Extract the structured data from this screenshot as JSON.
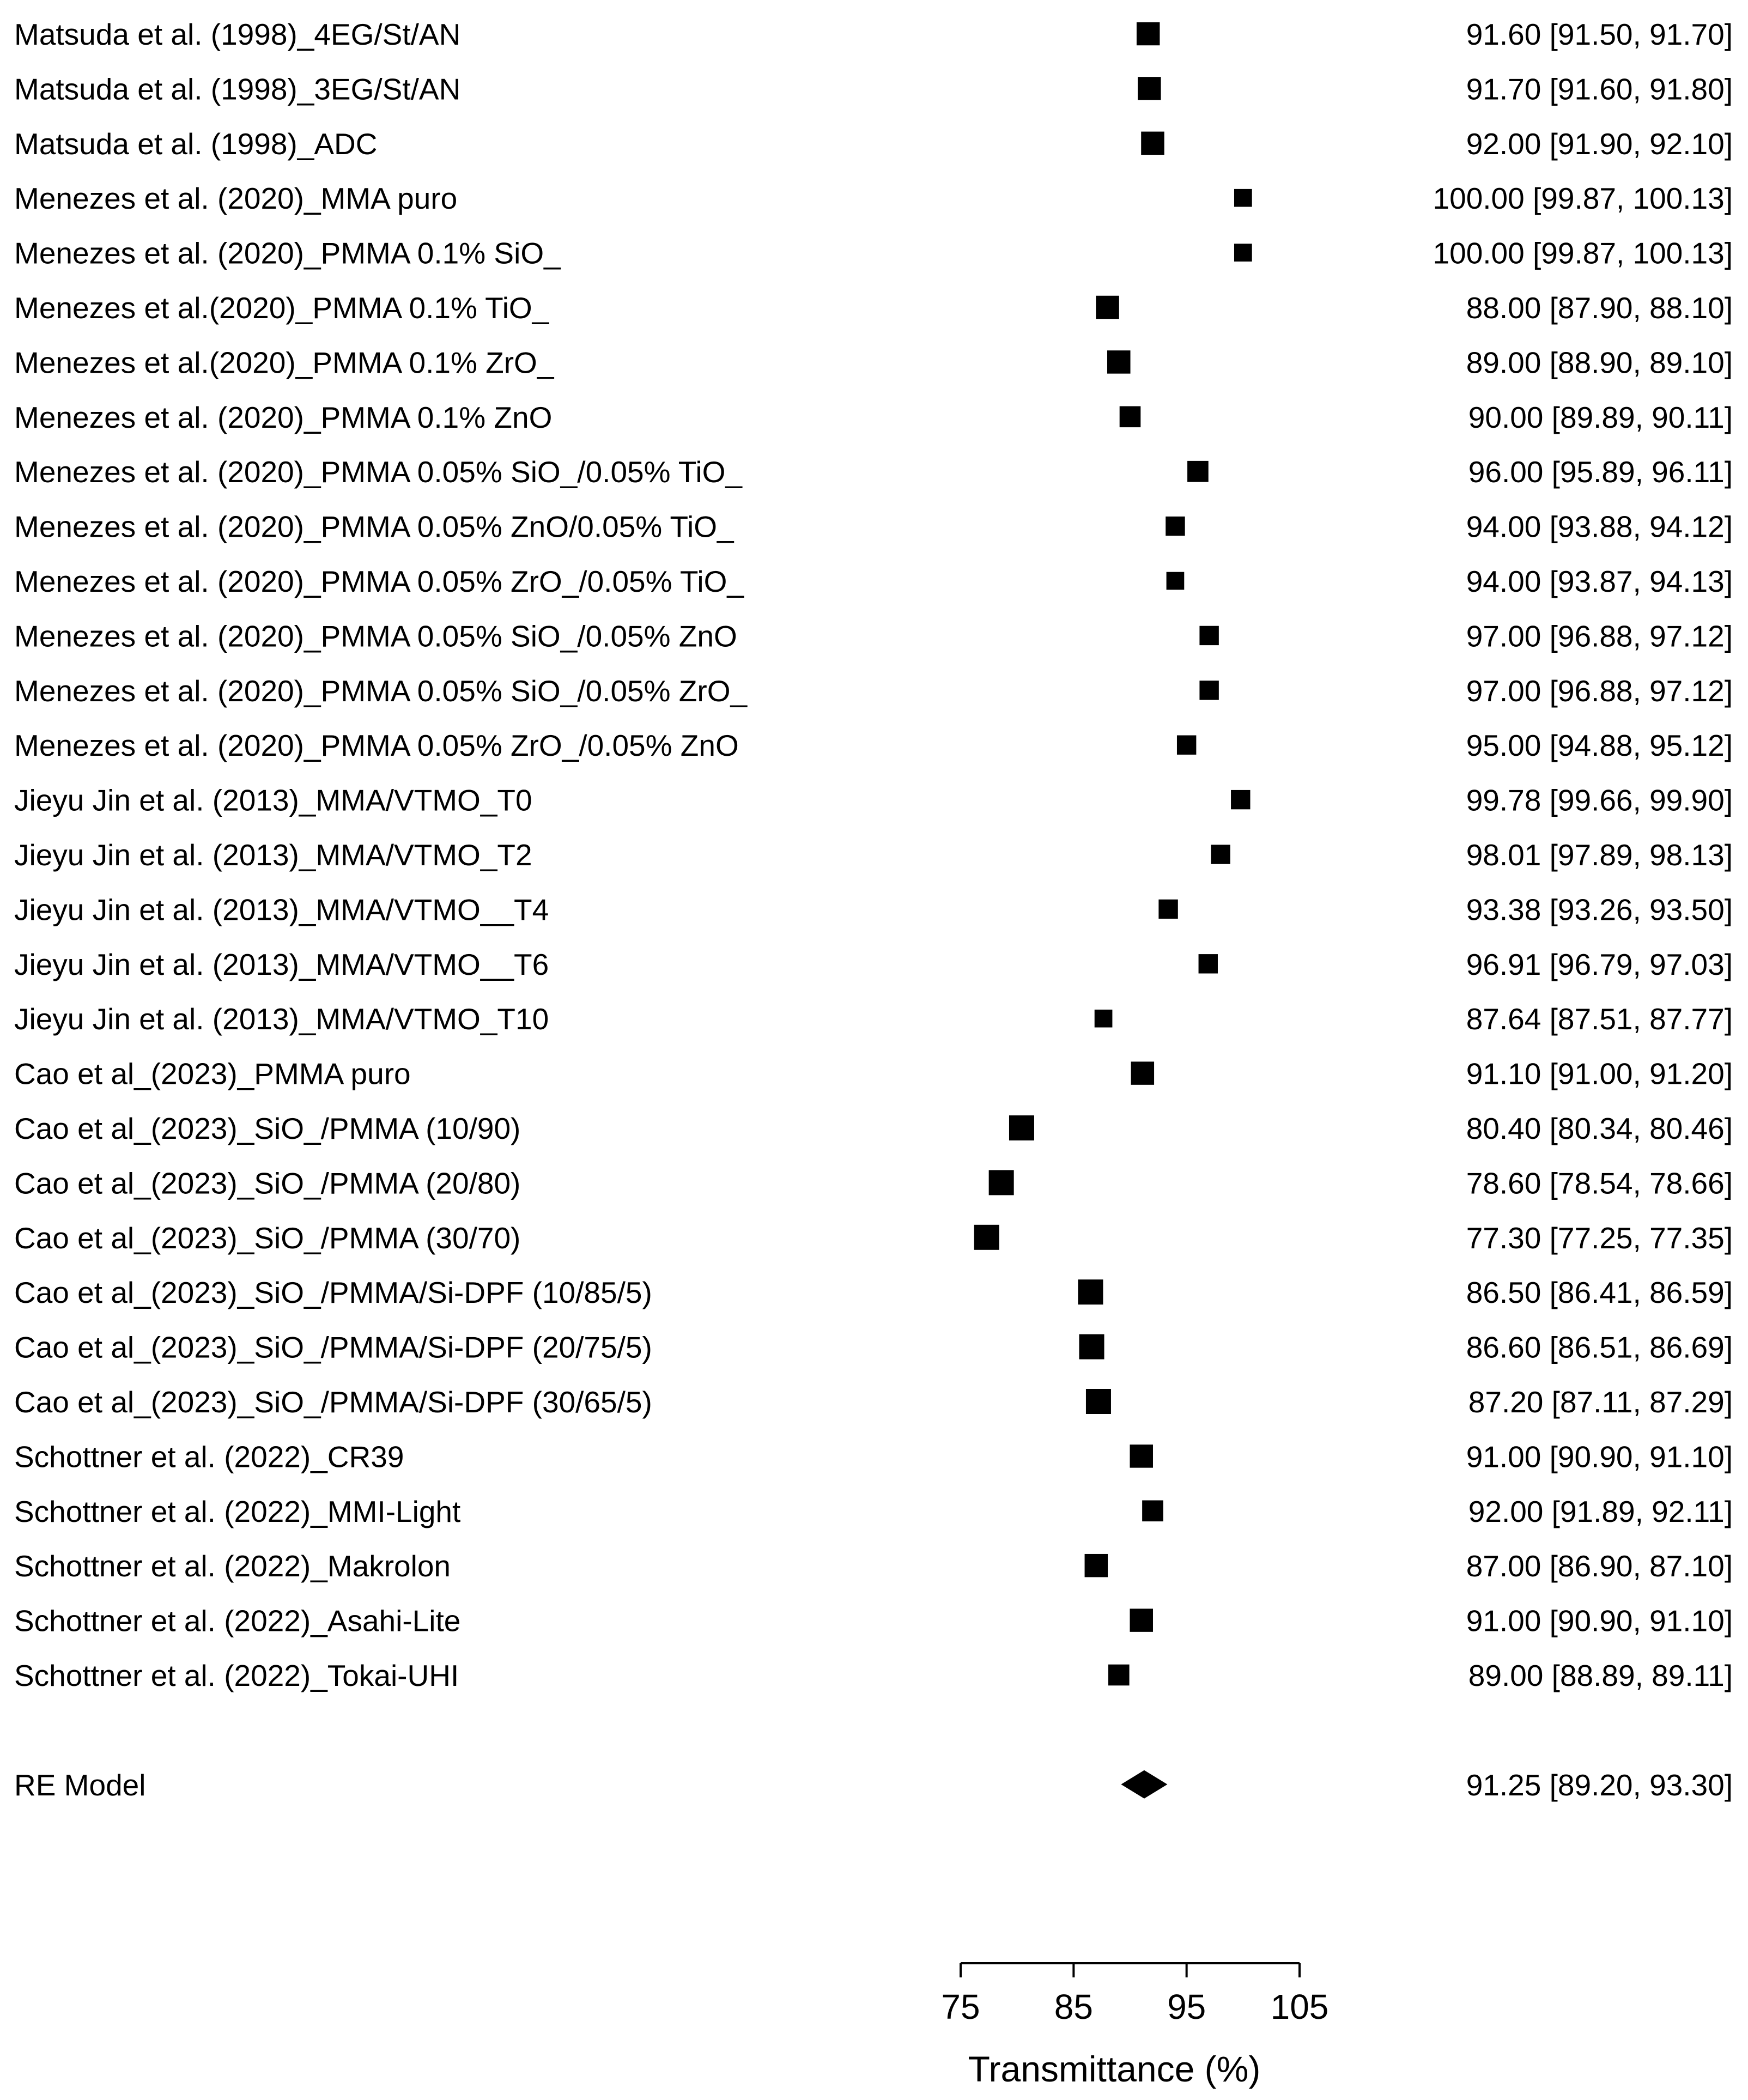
{
  "chart_data": {
    "type": "forest",
    "xlabel": "Transmittance (%)",
    "xlim": [
      75,
      105
    ],
    "xticks": [
      75,
      85,
      95,
      105
    ],
    "grid": false,
    "marker_color": "#000000",
    "studies": [
      {
        "label": "Matsuda et al. (1998)_4EG/St/AN",
        "estimate": 91.6,
        "lower": 91.5,
        "upper": 91.7,
        "ci_text": "91.60 [91.50, 91.70]"
      },
      {
        "label": "Matsuda et al. (1998)_3EG/St/AN",
        "estimate": 91.7,
        "lower": 91.6,
        "upper": 91.8,
        "ci_text": "91.70 [91.60, 91.80]"
      },
      {
        "label": "Matsuda et al. (1998)_ADC",
        "estimate": 92.0,
        "lower": 91.9,
        "upper": 92.1,
        "ci_text": "92.00 [91.90, 92.10]"
      },
      {
        "label": "Menezes et al. (2020)_MMA puro",
        "estimate": 100.0,
        "lower": 99.87,
        "upper": 100.13,
        "ci_text": "100.00 [99.87, 100.13]"
      },
      {
        "label": "Menezes et al. (2020)_PMMA 0.1% SiO_",
        "estimate": 100.0,
        "lower": 99.87,
        "upper": 100.13,
        "ci_text": "100.00 [99.87, 100.13]"
      },
      {
        "label": "Menezes et al.(2020)_PMMA 0.1% TiO_",
        "estimate": 88.0,
        "lower": 87.9,
        "upper": 88.1,
        "ci_text": "88.00 [87.90, 88.10]"
      },
      {
        "label": "Menezes et al.(2020)_PMMA 0.1% ZrO_",
        "estimate": 89.0,
        "lower": 88.9,
        "upper": 89.1,
        "ci_text": "89.00 [88.90, 89.10]"
      },
      {
        "label": "Menezes et al. (2020)_PMMA 0.1% ZnO",
        "estimate": 90.0,
        "lower": 89.89,
        "upper": 90.11,
        "ci_text": "90.00 [89.89, 90.11]"
      },
      {
        "label": "Menezes et al. (2020)_PMMA 0.05% SiO_/0.05% TiO_",
        "estimate": 96.0,
        "lower": 95.89,
        "upper": 96.11,
        "ci_text": "96.00 [95.89, 96.11]"
      },
      {
        "label": "Menezes et al. (2020)_PMMA 0.05% ZnO/0.05% TiO_",
        "estimate": 94.0,
        "lower": 93.88,
        "upper": 94.12,
        "ci_text": "94.00 [93.88, 94.12]"
      },
      {
        "label": "Menezes et al. (2020)_PMMA 0.05% ZrO_/0.05% TiO_",
        "estimate": 94.0,
        "lower": 93.87,
        "upper": 94.13,
        "ci_text": "94.00 [93.87, 94.13]"
      },
      {
        "label": "Menezes et al. (2020)_PMMA 0.05% SiO_/0.05% ZnO",
        "estimate": 97.0,
        "lower": 96.88,
        "upper": 97.12,
        "ci_text": "97.00 [96.88, 97.12]"
      },
      {
        "label": "Menezes et al. (2020)_PMMA 0.05% SiO_/0.05% ZrO_",
        "estimate": 97.0,
        "lower": 96.88,
        "upper": 97.12,
        "ci_text": "97.00 [96.88, 97.12]"
      },
      {
        "label": "Menezes et al. (2020)_PMMA 0.05% ZrO_/0.05% ZnO",
        "estimate": 95.0,
        "lower": 94.88,
        "upper": 95.12,
        "ci_text": "95.00 [94.88, 95.12]"
      },
      {
        "label": "Jieyu Jin et al. (2013)_MMA/VTMO_T0",
        "estimate": 99.78,
        "lower": 99.66,
        "upper": 99.9,
        "ci_text": "99.78 [99.66, 99.90]"
      },
      {
        "label": "Jieyu Jin et al. (2013)_MMA/VTMO_T2",
        "estimate": 98.01,
        "lower": 97.89,
        "upper": 98.13,
        "ci_text": "98.01 [97.89, 98.13]"
      },
      {
        "label": "Jieyu Jin et al. (2013)_MMA/VTMO__T4",
        "estimate": 93.38,
        "lower": 93.26,
        "upper": 93.5,
        "ci_text": "93.38 [93.26, 93.50]"
      },
      {
        "label": "Jieyu Jin et al. (2013)_MMA/VTMO__T6",
        "estimate": 96.91,
        "lower": 96.79,
        "upper": 97.03,
        "ci_text": "96.91 [96.79, 97.03]"
      },
      {
        "label": "Jieyu Jin et al. (2013)_MMA/VTMO_T10",
        "estimate": 87.64,
        "lower": 87.51,
        "upper": 87.77,
        "ci_text": "87.64 [87.51, 87.77]"
      },
      {
        "label": "Cao et al_(2023)_PMMA puro",
        "estimate": 91.1,
        "lower": 91.0,
        "upper": 91.2,
        "ci_text": "91.10 [91.00, 91.20]"
      },
      {
        "label": "Cao et al_(2023)_SiO_/PMMA (10/90)",
        "estimate": 80.4,
        "lower": 80.34,
        "upper": 80.46,
        "ci_text": "80.40 [80.34, 80.46]"
      },
      {
        "label": "Cao et al_(2023)_SiO_/PMMA (20/80)",
        "estimate": 78.6,
        "lower": 78.54,
        "upper": 78.66,
        "ci_text": "78.60 [78.54, 78.66]"
      },
      {
        "label": "Cao et al_(2023)_SiO_/PMMA (30/70)",
        "estimate": 77.3,
        "lower": 77.25,
        "upper": 77.35,
        "ci_text": "77.30 [77.25, 77.35]"
      },
      {
        "label": "Cao et al_(2023)_SiO_/PMMA/Si-DPF (10/85/5)",
        "estimate": 86.5,
        "lower": 86.41,
        "upper": 86.59,
        "ci_text": "86.50 [86.41, 86.59]"
      },
      {
        "label": "Cao et al_(2023)_SiO_/PMMA/Si-DPF (20/75/5)",
        "estimate": 86.6,
        "lower": 86.51,
        "upper": 86.69,
        "ci_text": "86.60 [86.51, 86.69]"
      },
      {
        "label": "Cao et al_(2023)_SiO_/PMMA/Si-DPF (30/65/5)",
        "estimate": 87.2,
        "lower": 87.11,
        "upper": 87.29,
        "ci_text": "87.20 [87.11, 87.29]"
      },
      {
        "label": "Schottner et al. (2022)_CR39",
        "estimate": 91.0,
        "lower": 90.9,
        "upper": 91.1,
        "ci_text": "91.00 [90.90, 91.10]"
      },
      {
        "label": "Schottner et al. (2022)_MMI-Light",
        "estimate": 92.0,
        "lower": 91.89,
        "upper": 92.11,
        "ci_text": "92.00 [91.89, 92.11]"
      },
      {
        "label": "Schottner et al. (2022)_Makrolon",
        "estimate": 87.0,
        "lower": 86.9,
        "upper": 87.1,
        "ci_text": "87.00 [86.90, 87.10]"
      },
      {
        "label": "Schottner et al. (2022)_Asahi-Lite",
        "estimate": 91.0,
        "lower": 90.9,
        "upper": 91.1,
        "ci_text": "91.00 [90.90, 91.10]"
      },
      {
        "label": "Schottner et al. (2022)_Tokai-UHI",
        "estimate": 89.0,
        "lower": 88.89,
        "upper": 89.11,
        "ci_text": "89.00 [88.89, 89.11]"
      }
    ],
    "summary": {
      "label": "RE Model",
      "estimate": 91.25,
      "lower": 89.2,
      "upper": 93.3,
      "ci_text": "91.25 [89.20, 93.30]"
    }
  }
}
